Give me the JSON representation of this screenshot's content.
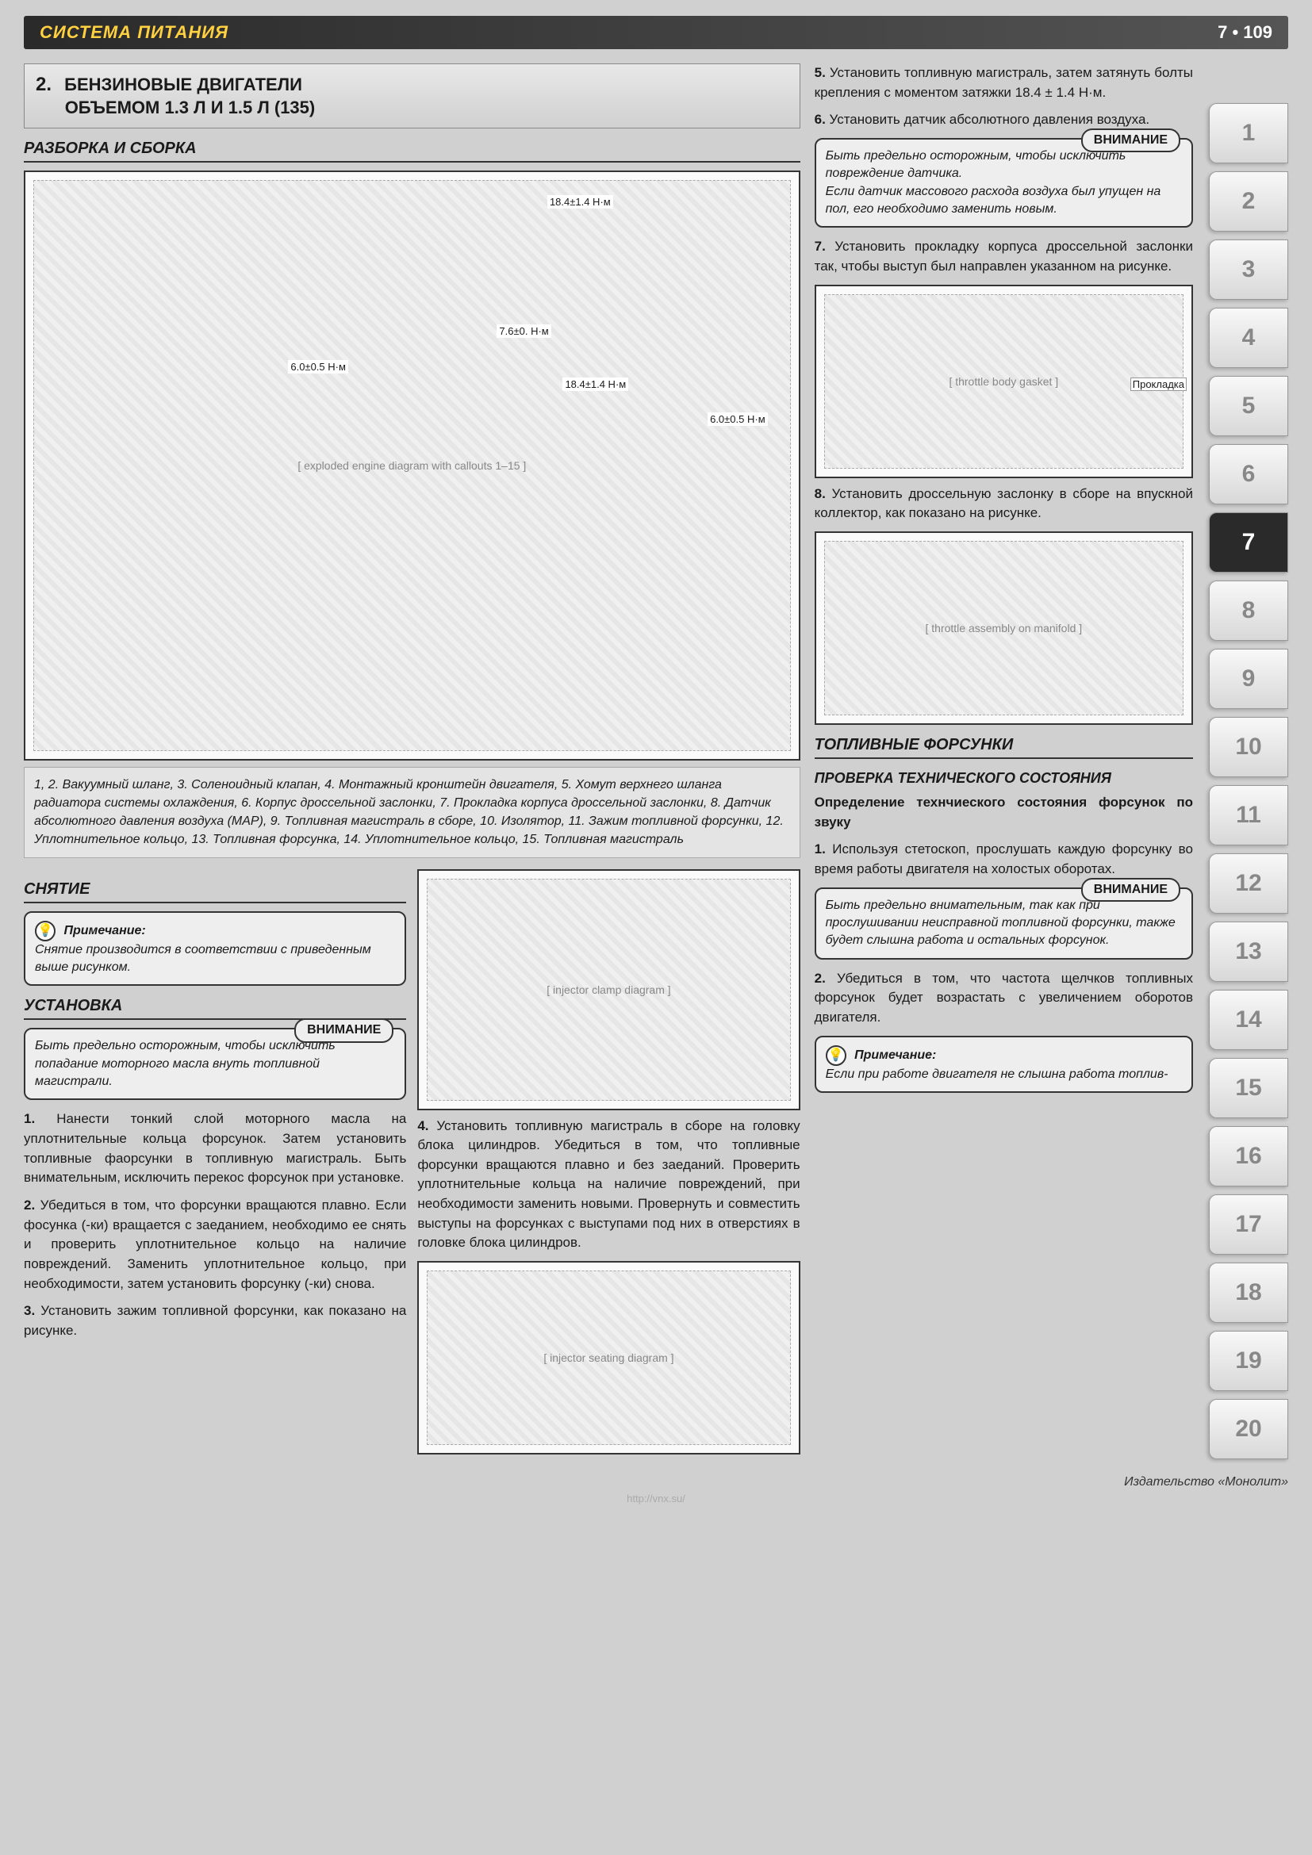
{
  "header": {
    "section_title": "СИСТЕМА ПИТАНИЯ",
    "page_marker": "7 • 109"
  },
  "section2": {
    "number": "2.",
    "title_line1": "БЕНЗИНОВЫЕ ДВИГАТЕЛИ",
    "title_line2": "ОБЪЕМОМ 1.3 Л И 1.5 Л (135)"
  },
  "headings": {
    "disassembly": "РАЗБОРКА И СБОРКА",
    "removal": "СНЯТИЕ",
    "install": "УСТАНОВКА",
    "injectors": "ТОПЛИВНЫЕ ФОРСУНКИ",
    "check": "ПРОВЕРКА ТЕХНИЧЕСКОГО СОСТОЯНИЯ",
    "sound_check": "Определение технчиеского состояния форсунок по звуку"
  },
  "torques": {
    "a": "18.4±1.4 Н·м",
    "b": "7.6±0. Н·м",
    "c": "6.0±0.5 Н·м",
    "d": "18.4±1.4 Н·м",
    "e": "6.0±0.5 Н·м",
    "gasket": "Прокладка"
  },
  "legend_text": "1, 2. Вакуумный шланг, 3. Соленоидный клапан, 4. Монтажный кронштейн двигателя, 5. Хомут верхнего шланга радиатора системы охлаждения, 6. Корпус дроссельной заслонки, 7. Прокладка корпуса дроссельной заслонки, 8. Датчик абсолютного давления воздуха (МАР), 9. Топливная магистраль в сборе, 10. Изолятор, 11. Зажим топливной форсунки, 12. Уплотнительное кольцо, 13. Топливная форсунка, 14. Уплотнительное кольцо, 15. Топливная магистраль",
  "note1": {
    "title": "Примечание:",
    "body": "Снятие производится в соответствии с приведенным выше рисунком."
  },
  "attn1": "Быть предельно осторожным, чтобы исключить попадание моторного масла внуть топливной магистрали.",
  "left_steps": {
    "s1": "Нанести тонкий слой моторного масла на уплотнительные кольца форсунок. Затем установить топливные фаорсунки в топливную магистраль. Быть внимательным, исключить перекос форсунок при установке.",
    "s2": "Убедиться в том, что форсунки вращаются плавно. Если фосунка (-ки) вращается с заеданием, необходимо ее снять и проверить уплотнительное кольцо на наличие повреждений. Заменить уплотнительное кольцо, при необходимости, затем установить форсунку (-ки) снова.",
    "s3": "Установить зажим топливной форсунки, как показано на рисунке."
  },
  "mid_step4": "Установить топливную магистраль в сборе на головку блока цилиндров. Убедиться в том, что топливные форсунки вращаются плавно и без заеданий. Проверить уплотнительные кольца на наличие повреждений, при необходимости заменить новыми. Провернуть и совместить выступы на форсунках с выступами под них в отверстиях в головке блока цилиндров.",
  "right_steps": {
    "s5": "Установить топливную магистраль, затем затянуть болты крепления с моментом затяжки 18.4 ± 1.4 Н·м.",
    "s6": "Установить датчик абсолютного давления воздуха.",
    "s7": "Установить прокладку корпуса дроссельной заслонки так, чтобы выступ был направлен указанном на рисунке.",
    "s8": "Установить дроссельную заслонку в сборе на впускной коллектор, как показано на рисунке."
  },
  "attn2": "Быть предельно осторожным, чтобы исключить повреждение датчика.\nЕсли датчик массового расхода воздуха был упущен на пол, его необходимо заменить новым.",
  "sound": {
    "s1": "Используя стетоскоп, прослушать каждую форсунку во время работы двигателя на холостых оборотах.",
    "s2": "Убедиться в том, что частота щелчков топливных форсунок будет возрастать с увеличением оборотов двигателя."
  },
  "attn3": "Быть предельно внимательным, так как при прослушивании неисправной топливной форсунки, также будет слышна работа и остальных форсунок.",
  "note2": {
    "title": "Примечание:",
    "body": "Если при работе двигателя не слышна работа топлив-"
  },
  "attn_label": "ВНИМАНИЕ",
  "tabs": [
    "1",
    "2",
    "3",
    "4",
    "5",
    "6",
    "7",
    "8",
    "9",
    "10",
    "11",
    "12",
    "13",
    "14",
    "15",
    "16",
    "17",
    "18",
    "19",
    "20"
  ],
  "active_tab": "7",
  "footer": "Издательство «Монолит»",
  "watermark": "http://vnx.su/"
}
